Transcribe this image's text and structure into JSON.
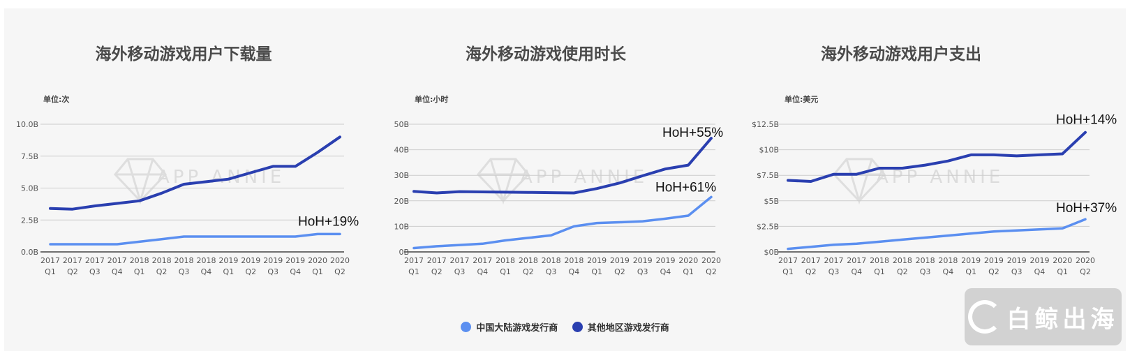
{
  "legend": [
    {
      "name": "中国大陆游戏发行商",
      "color": "#5b8ff0"
    },
    {
      "name": "其他地区游戏发行商",
      "color": "#2a3fb0"
    }
  ],
  "watermark": "APP ANNIE",
  "brand": "白鲸出海",
  "chart_data": [
    {
      "type": "line",
      "title": "海外移动游戏用户下载量",
      "unit": "单位:次",
      "x": [
        [
          "2017",
          "Q1"
        ],
        [
          "2017",
          "Q2"
        ],
        [
          "2017",
          "Q3"
        ],
        [
          "2017",
          "Q4"
        ],
        [
          "2018",
          "Q1"
        ],
        [
          "2018",
          "Q2"
        ],
        [
          "2018",
          "Q3"
        ],
        [
          "2018",
          "Q4"
        ],
        [
          "2019",
          "Q1"
        ],
        [
          "2019",
          "Q2"
        ],
        [
          "2019",
          "Q3"
        ],
        [
          "2019",
          "Q4"
        ],
        [
          "2020",
          "Q1"
        ],
        [
          "2020",
          "Q2"
        ]
      ],
      "ylim": [
        0,
        10
      ],
      "yticks": [
        0,
        2.5,
        5,
        7.5,
        10
      ],
      "ytick_labels": [
        "0.0B",
        "2.5B",
        "5.0B",
        "7.5B",
        "10.0B"
      ],
      "grid": true,
      "series": [
        {
          "name": "中国大陆游戏发行商",
          "color": "#5b8ff0",
          "values": [
            0.6,
            0.6,
            0.6,
            0.6,
            0.8,
            1.0,
            1.2,
            1.2,
            1.2,
            1.2,
            1.2,
            1.2,
            1.4,
            1.4
          ]
        },
        {
          "name": "其他地区游戏发行商",
          "color": "#2a3fb0",
          "values": [
            3.4,
            3.35,
            3.6,
            3.8,
            4.0,
            4.6,
            5.3,
            5.5,
            5.7,
            6.2,
            6.7,
            6.7,
            7.8,
            9.0
          ]
        }
      ],
      "annotations": [
        {
          "text": "HoH+19%",
          "series": 0
        }
      ]
    },
    {
      "type": "line",
      "title": "海外移动游戏使用时长",
      "unit": "单位:小时",
      "x": [
        [
          "2017",
          "Q1"
        ],
        [
          "2017",
          "Q2"
        ],
        [
          "2017",
          "Q3"
        ],
        [
          "2017",
          "Q4"
        ],
        [
          "2018",
          "Q1"
        ],
        [
          "2018",
          "Q2"
        ],
        [
          "2018",
          "Q3"
        ],
        [
          "2018",
          "Q4"
        ],
        [
          "2019",
          "Q1"
        ],
        [
          "2019",
          "Q2"
        ],
        [
          "2019",
          "Q3"
        ],
        [
          "2019",
          "Q4"
        ],
        [
          "2020",
          "Q1"
        ],
        [
          "2020",
          "Q2"
        ]
      ],
      "ylim": [
        0,
        50
      ],
      "yticks": [
        0,
        10,
        20,
        30,
        40,
        50
      ],
      "ytick_labels": [
        "0B",
        "10B",
        "20B",
        "30B",
        "40B",
        "50B"
      ],
      "grid": true,
      "series": [
        {
          "name": "中国大陆游戏发行商",
          "color": "#5b8ff0",
          "values": [
            1.5,
            2.2,
            2.7,
            3.2,
            4.5,
            5.5,
            6.5,
            10.0,
            11.3,
            11.6,
            12.0,
            13.0,
            14.2,
            21.5
          ]
        },
        {
          "name": "其他地区游戏发行商",
          "color": "#2a3fb0",
          "values": [
            23.7,
            23.1,
            23.6,
            23.5,
            23.4,
            23.3,
            23.2,
            23.1,
            24.8,
            27.0,
            29.8,
            32.5,
            34.0,
            44.5
          ]
        }
      ],
      "annotations": [
        {
          "text": "HoH+55%",
          "series": 1
        },
        {
          "text": "HoH+61%",
          "series": 0
        }
      ]
    },
    {
      "type": "line",
      "title": "海外移动游戏用户支出",
      "unit": "单位:美元",
      "x": [
        [
          "2017",
          "Q1"
        ],
        [
          "2017",
          "Q2"
        ],
        [
          "2017",
          "Q3"
        ],
        [
          "2017",
          "Q4"
        ],
        [
          "2018",
          "Q1"
        ],
        [
          "2018",
          "Q2"
        ],
        [
          "2018",
          "Q3"
        ],
        [
          "2018",
          "Q4"
        ],
        [
          "2019",
          "Q1"
        ],
        [
          "2019",
          "Q2"
        ],
        [
          "2019",
          "Q3"
        ],
        [
          "2019",
          "Q4"
        ],
        [
          "2020",
          "Q1"
        ],
        [
          "2020",
          "Q2"
        ]
      ],
      "ylim": [
        0,
        12.5
      ],
      "yticks": [
        0,
        2.5,
        5,
        7.5,
        10,
        12.5
      ],
      "ytick_labels": [
        "$0B",
        "$2.5B",
        "$5B",
        "$7.5B",
        "$10B",
        "$12.5B"
      ],
      "grid": true,
      "series": [
        {
          "name": "中国大陆游戏发行商",
          "color": "#5b8ff0",
          "values": [
            0.3,
            0.5,
            0.7,
            0.8,
            1.0,
            1.2,
            1.4,
            1.6,
            1.8,
            2.0,
            2.1,
            2.2,
            2.3,
            3.2
          ]
        },
        {
          "name": "其他地区游戏发行商",
          "color": "#2a3fb0",
          "values": [
            7.0,
            6.9,
            7.6,
            7.6,
            8.2,
            8.2,
            8.5,
            8.9,
            9.5,
            9.5,
            9.4,
            9.5,
            9.6,
            11.7
          ]
        }
      ],
      "annotations": [
        {
          "text": "HoH+14%",
          "series": 1
        },
        {
          "text": "HoH+37%",
          "series": 0
        }
      ]
    }
  ]
}
